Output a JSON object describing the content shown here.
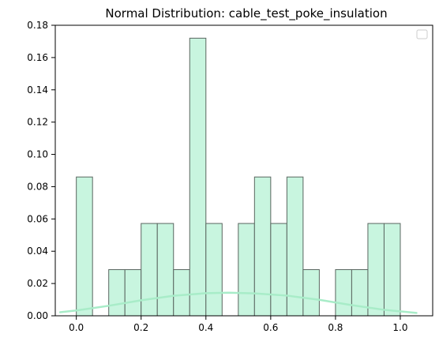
{
  "chart_data": {
    "type": "bar",
    "title": "Normal Distribution: cable_test_poke_insulation",
    "xlabel": "",
    "ylabel": "",
    "xlim": [
      -0.065,
      1.1
    ],
    "ylim": [
      0,
      0.18
    ],
    "x_ticks": [
      0.0,
      0.2,
      0.4,
      0.6,
      0.8,
      1.0
    ],
    "x_tick_labels": [
      "0.0",
      "0.2",
      "0.4",
      "0.6",
      "0.8",
      "1.0"
    ],
    "y_ticks": [
      0.0,
      0.02,
      0.04,
      0.06,
      0.08,
      0.1,
      0.12,
      0.14,
      0.16,
      0.18
    ],
    "y_tick_labels": [
      "0.00",
      "0.02",
      "0.04",
      "0.06",
      "0.08",
      "0.10",
      "0.12",
      "0.14",
      "0.16",
      "0.18"
    ],
    "grid": false,
    "legend": {
      "placement": "top-right",
      "entries": []
    },
    "histogram": {
      "bin_edges": [
        0.0,
        0.05,
        0.1,
        0.15,
        0.2,
        0.25,
        0.3,
        0.35,
        0.4,
        0.45,
        0.5,
        0.55,
        0.6,
        0.65,
        0.7,
        0.75,
        0.8,
        0.85,
        0.9,
        0.95,
        1.0
      ],
      "values": [
        0.086,
        0,
        0.0286,
        0.0286,
        0.0572,
        0.0572,
        0.0286,
        0.172,
        0.0572,
        0,
        0.0572,
        0.086,
        0.0572,
        0.086,
        0.0286,
        0,
        0.0286,
        0.0286,
        0.0572,
        0.0572
      ],
      "fill_color": "#c8f5df",
      "edge_color": "#5a6660"
    },
    "density_curve": {
      "x": [
        -0.05,
        0.0,
        0.1,
        0.2,
        0.3,
        0.4,
        0.47,
        0.55,
        0.65,
        0.75,
        0.85,
        0.95,
        1.05
      ],
      "y": [
        0.0022,
        0.0033,
        0.0062,
        0.0096,
        0.0124,
        0.014,
        0.0143,
        0.0139,
        0.0125,
        0.0099,
        0.0066,
        0.0037,
        0.0018
      ],
      "color": "#a8ecc8"
    }
  }
}
